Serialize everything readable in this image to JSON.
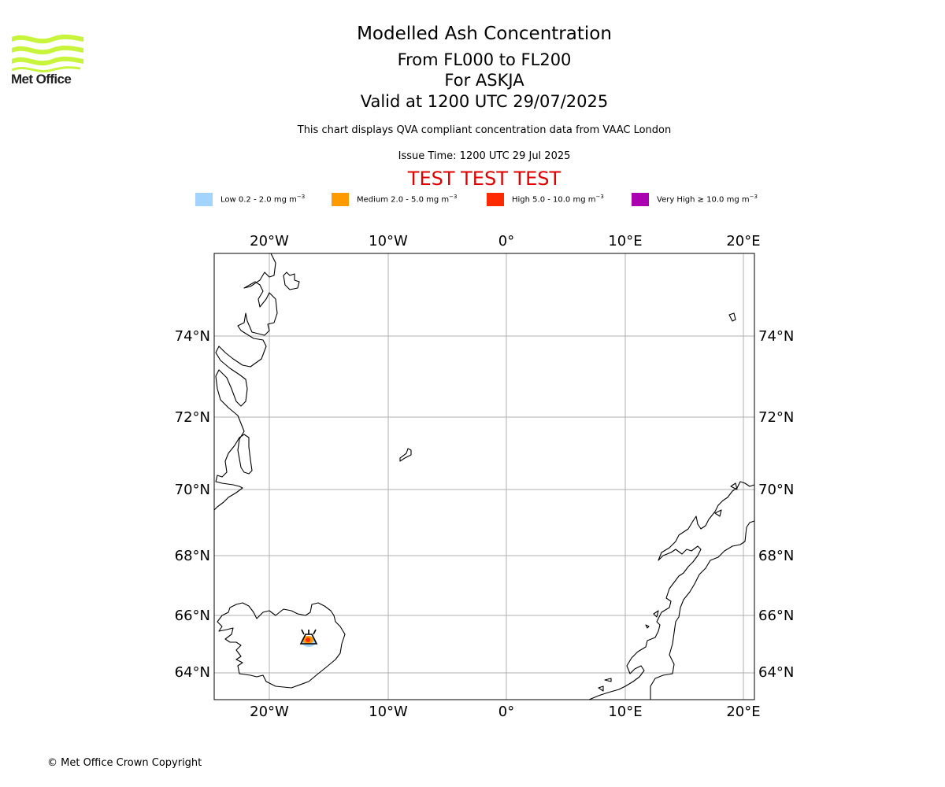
{
  "logo": {
    "text": "Met Office",
    "color": "#c8f53c"
  },
  "title": "Modelled Ash Concentration",
  "subtitle_lines": [
    "From FL000 to FL200",
    "For ASKJA",
    "Valid at 1200 UTC 29/07/2025"
  ],
  "description": "This chart displays QVA compliant concentration data from VAAC London",
  "issue_time": "Issue Time: 1200 UTC 29 Jul 2025",
  "test_banner": "TEST TEST TEST",
  "legend": [
    {
      "label": "Low 0.2 - 2.0 mg m",
      "color": "#a3d4ff"
    },
    {
      "label": "Medium 2.0 - 5.0 mg m",
      "color": "#ff9a00"
    },
    {
      "label": "High 5.0 - 10.0 mg m",
      "color": "#ff2a00"
    },
    {
      "label": "Very High ≥ 10.0 mg m",
      "color": "#aa00b0"
    }
  ],
  "legend_unit_exponent": "−3",
  "map": {
    "lon_labels": [
      "20°W",
      "10°W",
      "0°",
      "10°E",
      "20°E"
    ],
    "lat_labels": [
      "74°N",
      "72°N",
      "70°N",
      "68°N",
      "66°N",
      "64°N"
    ],
    "volcano": "ASKJA",
    "gridline_color": "#b0b0b0"
  },
  "copyright": "© Met Office Crown Copyright"
}
